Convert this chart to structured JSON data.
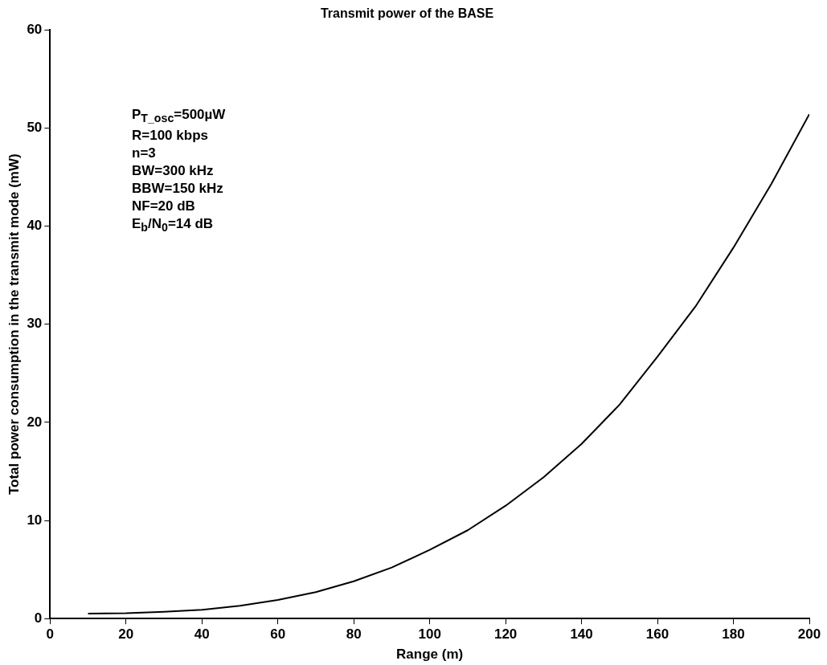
{
  "chart_data": {
    "type": "line",
    "title": "Transmit power of the BASE",
    "xlabel": "Range (m)",
    "ylabel": "Total power consumption in the transmit mode (mW)",
    "x": [
      10,
      20,
      30,
      40,
      50,
      60,
      70,
      80,
      90,
      100,
      110,
      120,
      130,
      140,
      150,
      160,
      170,
      180,
      190,
      200
    ],
    "series": [
      {
        "color": "#000000",
        "values": [
          0.5,
          0.55,
          0.7,
          0.9,
          1.3,
          1.9,
          2.7,
          3.8,
          5.2,
          7.0,
          9.0,
          11.5,
          14.4,
          17.8,
          21.8,
          26.7,
          31.8,
          37.8,
          44.3,
          51.4
        ]
      }
    ],
    "xlim": [
      0,
      200
    ],
    "xticks": [
      0,
      20,
      40,
      60,
      80,
      100,
      120,
      140,
      160,
      180,
      200
    ],
    "ylim": [
      0,
      60
    ],
    "yticks": [
      0,
      10,
      20,
      30,
      40,
      50,
      60
    ],
    "grid": false,
    "legend": false,
    "marker": "none",
    "line_style": "solid",
    "annotations": [
      "P$_{T_osc}$=500µW",
      "R=100 kbps",
      "n=3",
      "BW=300 kHz",
      "BBW=150 kHz",
      "NF=20 dB",
      "E$_{b}$/N$_{0}$=14 dB"
    ]
  }
}
